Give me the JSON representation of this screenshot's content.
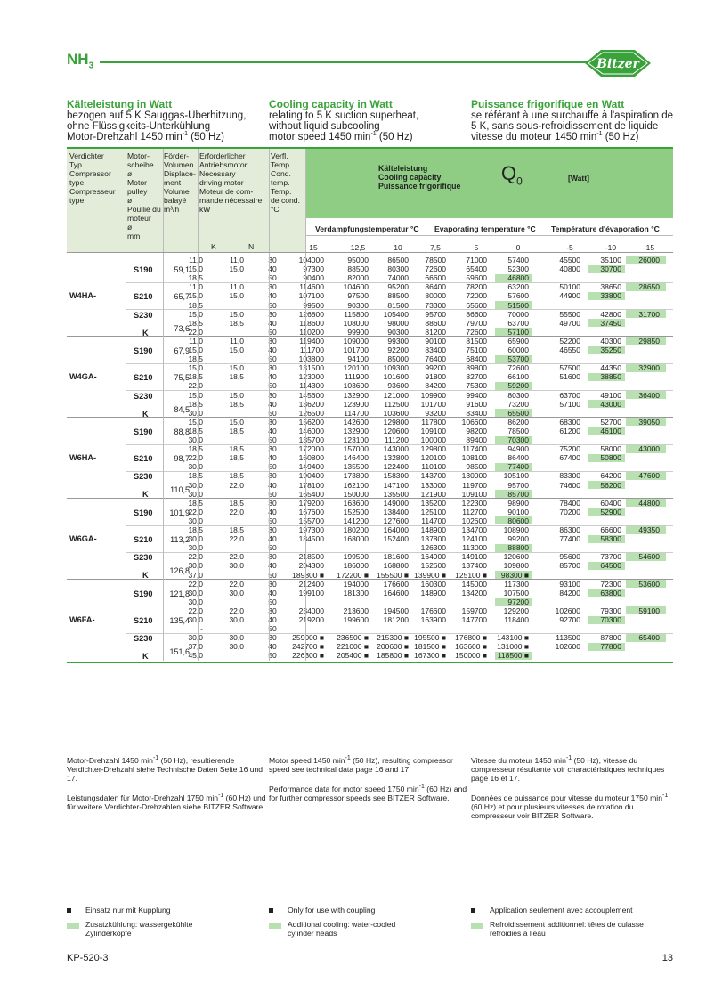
{
  "header": {
    "refrigerant": "NH",
    "refrigerant_sub": "3",
    "brand": "BITZER"
  },
  "columns": [
    {
      "title": "Kälteleistung in Watt",
      "l1": "bezogen auf 5 K Sauggas-Überhitzung,",
      "l2": "ohne Flüssigkeits-Unterkühlung",
      "l3": "Motor-Drehzahl 1450 min",
      "l3_sup": "-1",
      "l3_end": " (50 Hz)"
    },
    {
      "title": "Cooling capacity in Watt",
      "l1": "relating to 5 K suction superheat,",
      "l2": "without liquid subcooling",
      "l3": "motor speed 1450 min",
      "l3_sup": "-1",
      "l3_end": " (50 Hz)"
    },
    {
      "title": "Puissance frigorifique en Watt",
      "l1": "se référant à une surchauffe à l'aspiration de",
      "l2": "5 K, sans sous-refroidissement de liquide",
      "l3": "vitesse du moteur 1450 min",
      "l3_sup": "-1",
      "l3_end": " (50 Hz)"
    }
  ],
  "table_header": {
    "col1": [
      "Verdichter",
      "Typ",
      "",
      "Compressor",
      "type",
      "",
      "Compresseur",
      "type"
    ],
    "col2": [
      "Motor-",
      "scheibe",
      "ø",
      "Motor",
      "pulley",
      "ø",
      "Poullie du",
      "moteur",
      "ø",
      "mm"
    ],
    "col3": [
      "Förder-",
      "Volumen",
      "",
      "Displace-",
      "ment",
      "",
      "Volume",
      "balayé",
      "",
      "m³/h"
    ],
    "col4": [
      "Erforderlicher",
      "Antriebsmotor",
      "",
      "Necessary",
      "driving motor",
      "",
      "Moteur de com-",
      "mande nécessaire",
      "kW"
    ],
    "col4_k": "K",
    "col4_n": "N",
    "col5": [
      "Verfl.",
      "Temp.",
      "",
      "Cond.",
      "temp.",
      "",
      "Temp.",
      "de cond.",
      "",
      "°C"
    ],
    "capacity": [
      "Kälteleistung",
      "Cooling capacity",
      "Puissance frigorifique"
    ],
    "q_symbol": "Q",
    "q_sub": "0",
    "unit": "[Watt]",
    "evap_de": "Verdampfungstemperatur °C",
    "evap_en": "Evaporating temperature °C",
    "evap_fr": "Température d'évaporation °C",
    "evap_temps": [
      "15",
      "12,5",
      "10",
      "7,5",
      "5",
      "0",
      "-5",
      "-10",
      "-15"
    ]
  },
  "groups": [
    {
      "name": "W4HA-",
      "blocks": [
        {
          "model": "S190",
          "kmark": "",
          "disp": "59,1",
          "rows": [
            [
              "11,0",
              "11,0",
              "30",
              "104000",
              "95000",
              "86500",
              "78500",
              "71000",
              "57400",
              "45500",
              "35100",
              "26000"
            ],
            [
              "15,0",
              "15,0",
              "40",
              "97300",
              "88500",
              "80300",
              "72600",
              "65400",
              "52300",
              "40800",
              "30700",
              ""
            ],
            [
              "18,5",
              "",
              "50",
              "90400",
              "82000",
              "74000",
              "66600",
              "59600",
              "46800",
              "",
              "",
              ""
            ]
          ]
        },
        {
          "model": "S210",
          "kmark": "",
          "disp": "65,7",
          "rows": [
            [
              "11,0",
              "11,0",
              "30",
              "114600",
              "104600",
              "95200",
              "86400",
              "78200",
              "63200",
              "50100",
              "38650",
              "28650"
            ],
            [
              "15,0",
              "15,0",
              "40",
              "107100",
              "97500",
              "88500",
              "80000",
              "72000",
              "57600",
              "44900",
              "33800",
              ""
            ],
            [
              "18,5",
              "",
              "50",
              "99500",
              "90300",
              "81500",
              "73300",
              "65600",
              "51500",
              "",
              "",
              ""
            ]
          ]
        },
        {
          "model": "S230",
          "kmark": "K",
          "disp": "73,6",
          "rows": [
            [
              "15,0",
              "15,0",
              "30",
              "126800",
              "115800",
              "105400",
              "95700",
              "86600",
              "70000",
              "55500",
              "42800",
              "31700"
            ],
            [
              "18,5",
              "18,5",
              "40",
              "118600",
              "108000",
              "98000",
              "88600",
              "79700",
              "63700",
              "49700",
              "37450",
              ""
            ],
            [
              "22,0",
              "",
              "50",
              "110200",
              "99900",
              "90300",
              "81200",
              "72600",
              "57100",
              "",
              "",
              ""
            ]
          ]
        }
      ]
    },
    {
      "name": "W4GA-",
      "blocks": [
        {
          "model": "S190",
          "kmark": "",
          "disp": "67,9",
          "rows": [
            [
              "11,0",
              "11,0",
              "30",
              "119400",
              "109000",
              "99300",
              "90100",
              "81500",
              "65900",
              "52200",
              "40300",
              "29850"
            ],
            [
              "15,0",
              "15,0",
              "40",
              "111700",
              "101700",
              "92200",
              "83400",
              "75100",
              "60000",
              "46550",
              "35250",
              ""
            ],
            [
              "18,5",
              "",
              "50",
              "103800",
              "94100",
              "85000",
              "76400",
              "68400",
              "53700",
              "",
              "",
              ""
            ]
          ]
        },
        {
          "model": "S210",
          "kmark": "",
          "disp": "75,5",
          "rows": [
            [
              "15,0",
              "15,0",
              "30",
              "131500",
              "120100",
              "109300",
              "99200",
              "89800",
              "72600",
              "57500",
              "44350",
              "32900"
            ],
            [
              "18,5",
              "18,5",
              "40",
              "123000",
              "111900",
              "101600",
              "91800",
              "82700",
              "66100",
              "51600",
              "38850",
              ""
            ],
            [
              "22,0",
              "",
              "50",
              "114300",
              "103600",
              "93600",
              "84200",
              "75300",
              "59200",
              "",
              "",
              ""
            ]
          ]
        },
        {
          "model": "S230",
          "kmark": "K",
          "disp": "84,5",
          "rows": [
            [
              "15,0",
              "15,0",
              "30",
              "145600",
              "132900",
              "121000",
              "109900",
              "99400",
              "80300",
              "63700",
              "49100",
              "36400"
            ],
            [
              "18,5",
              "18,5",
              "40",
              "136200",
              "123900",
              "112500",
              "101700",
              "91600",
              "73200",
              "57100",
              "43000",
              ""
            ],
            [
              "30,0",
              "",
              "50",
              "126500",
              "114700",
              "103600",
              "93200",
              "83400",
              "65500",
              "",
              "",
              ""
            ]
          ]
        }
      ]
    },
    {
      "name": "W6HA-",
      "blocks": [
        {
          "model": "S190",
          "kmark": "",
          "disp": "88,8",
          "rows": [
            [
              "15,0",
              "15,0",
              "30",
              "156200",
              "142600",
              "129800",
              "117800",
              "106600",
              "86200",
              "68300",
              "52700",
              "39050"
            ],
            [
              "18,5",
              "18,5",
              "40",
              "146000",
              "132900",
              "120600",
              "109100",
              "98200",
              "78500",
              "61200",
              "46100",
              ""
            ],
            [
              "30,0",
              "",
              "50",
              "135700",
              "123100",
              "111200",
              "100000",
              "89400",
              "70300",
              "",
              "",
              ""
            ]
          ]
        },
        {
          "model": "S210",
          "kmark": "",
          "disp": "98,7",
          "rows": [
            [
              "18,5",
              "18,5",
              "30",
              "172000",
              "157000",
              "143000",
              "129800",
              "117400",
              "94900",
              "75200",
              "58000",
              "43000"
            ],
            [
              "22,0",
              "18,5",
              "40",
              "160800",
              "146400",
              "132800",
              "120100",
              "108100",
              "86400",
              "67400",
              "50800",
              ""
            ],
            [
              "30,0",
              "",
              "50",
              "149400",
              "135500",
              "122400",
              "110100",
              "98500",
              "77400",
              "",
              "",
              ""
            ]
          ]
        },
        {
          "model": "S230",
          "kmark": "K",
          "disp": "110,5",
          "rows": [
            [
              "18,5",
              "18,5",
              "30",
              "190400",
              "173800",
              "158300",
              "143700",
              "130000",
              "105100",
              "83300",
              "64200",
              "47600"
            ],
            [
              "30,0",
              "22,0",
              "40",
              "178100",
              "162100",
              "147100",
              "133000",
              "119700",
              "95700",
              "74600",
              "56200",
              ""
            ],
            [
              "30,0",
              "",
              "50",
              "165400",
              "150000",
              "135500",
              "121900",
              "109100",
              "85700",
              "",
              "",
              ""
            ]
          ]
        }
      ]
    },
    {
      "name": "W6GA-",
      "blocks": [
        {
          "model": "S190",
          "kmark": "",
          "disp": "101,9",
          "rows": [
            [
              "18,5",
              "18,5",
              "30",
              "179200",
              "163600",
              "149000",
              "135200",
              "122300",
              "98900",
              "78400",
              "60400",
              "44800"
            ],
            [
              "22,0",
              "22,0",
              "40",
              "167600",
              "152500",
              "138400",
              "125100",
              "112700",
              "90100",
              "70200",
              "52900",
              ""
            ],
            [
              "30,0",
              "",
              "50",
              "155700",
              "141200",
              "127600",
              "114700",
              "102600",
              "80600",
              "",
              "",
              ""
            ]
          ]
        },
        {
          "model": "S210",
          "kmark": "",
          "disp": "113,2",
          "rows": [
            [
              "18,5",
              "18,5",
              "30",
              "197300",
              "180200",
              "164000",
              "148900",
              "134700",
              "108900",
              "86300",
              "66600",
              "49350"
            ],
            [
              "30,0",
              "22,0",
              "40",
              "184500",
              "168000",
              "152400",
              "137800",
              "124100",
              "99200",
              "77400",
              "58300",
              ""
            ],
            [
              "30,0",
              "",
              "50",
              "",
              "",
              "",
              "126300",
              "113000",
              "88800",
              "",
              "",
              ""
            ]
          ]
        },
        {
          "model": "S230",
          "kmark": "K",
          "disp": "126,8",
          "rows": [
            [
              "22,0",
              "22,0",
              "30",
              "218500",
              "199500",
              "181600",
              "164900",
              "149100",
              "120600",
              "95600",
              "73700",
              "54600"
            ],
            [
              "30,0",
              "30,0",
              "40",
              "204300",
              "186000",
              "168800",
              "152600",
              "137400",
              "109800",
              "85700",
              "64500",
              ""
            ],
            [
              "37,0",
              "",
              "50",
              "189800 ■",
              "172200 ■",
              "155500 ■",
              "139900 ■",
              "125100 ■",
              "98300 ■",
              "",
              "",
              ""
            ]
          ]
        }
      ]
    },
    {
      "name": "W6FA-",
      "blocks": [
        {
          "model": "S190",
          "kmark": "",
          "disp": "121,8",
          "rows": [
            [
              "22,0",
              "22,0",
              "30",
              "212400",
              "194000",
              "176600",
              "160300",
              "145000",
              "117300",
              "93100",
              "72300",
              "53600"
            ],
            [
              "30,0",
              "30,0",
              "40",
              "199100",
              "181300",
              "164600",
              "148900",
              "134200",
              "107500",
              "84200",
              "63800",
              ""
            ],
            [
              "30,0",
              "",
              "50",
              "",
              "",
              "",
              "",
              "",
              "97200",
              "",
              "",
              ""
            ]
          ]
        },
        {
          "model": "S210",
          "kmark": "",
          "disp": "135,4",
          "rows": [
            [
              "22,0",
              "22,0",
              "30",
              "234000",
              "213600",
              "194500",
              "176600",
              "159700",
              "129200",
              "102600",
              "79300",
              "59100"
            ],
            [
              "30,0",
              "30,0",
              "40",
              "219200",
              "199600",
              "181200",
              "163900",
              "147700",
              "118400",
              "92700",
              "70300",
              ""
            ],
            [
              "-",
              "",
              "50",
              "",
              "",
              "",
              "",
              "",
              "",
              "",
              "",
              ""
            ]
          ]
        },
        {
          "model": "S230",
          "kmark": "K",
          "disp": "151,6",
          "rows": [
            [
              "30,0",
              "30,0",
              "30",
              "259000 ■",
              "236500 ■",
              "215300 ■",
              "195500 ■",
              "176800 ■",
              "143100 ■",
              "113500",
              "87800",
              "65400"
            ],
            [
              "37,0",
              "30,0",
              "40",
              "242700 ■",
              "221000 ■",
              "200600 ■",
              "181500 ■",
              "163600 ■",
              "131000 ■",
              "102600",
              "77800",
              ""
            ],
            [
              "45,0",
              "",
              "50",
              "226300 ■",
              "205400 ■",
              "185800 ■",
              "167300 ■",
              "150000 ■",
              "118500 ■",
              "",
              "",
              ""
            ]
          ]
        }
      ]
    }
  ],
  "footnotes": [
    {
      "p1a": "Motor-Drehzahl 1450 min",
      "p1sup": "-1",
      "p1b": " (50 Hz), resultierende Verdichter-Drehzahl siehe Technische Daten Seite 16 und 17.",
      "p2a": "Leistungsdaten für Motor-Drehzahl 1750 min",
      "p2sup": "-1",
      "p2b": " (60 Hz) und für weitere Verdichter-Drehzahlen siehe BITZER Software."
    },
    {
      "p1a": "Motor speed 1450 min",
      "p1sup": "-1",
      "p1b": " (50 Hz), resulting compressor speed see technical data page 16 and 17.",
      "p2a": "Performance data for motor speed 1750 min",
      "p2sup": "-1",
      "p2b": " (60 Hz) and for further compressor speeds see BITZER Software."
    },
    {
      "p1a": "Vitesse du moteur 1450 min",
      "p1sup": "-1",
      "p1b": " (50 Hz), vitesse du compresseur résultante voir charactéristiques techniques page 16 et 17.",
      "p2a": "Données de puissance pour vitesse du moteur 1750 min",
      "p2sup": "-1",
      "p2b": " (60 Hz) et pour plusieurs vitesses de rotation du compresseur voir BITZER Software."
    }
  ],
  "legend": [
    {
      "coupling": "Einsatz nur mit Kupplung",
      "cooling1": "Zusatzkühlung: wassergekühlte",
      "cooling2": "Zylinderköpfe"
    },
    {
      "coupling": "Only for use with coupling",
      "cooling1": "Additional cooling: water-cooled",
      "cooling2": "cylinder heads"
    },
    {
      "coupling": "Application seulement avec accouplement",
      "cooling1": "Refroidissement additionnel: têtes de culasse",
      "cooling2": "refroidies à l'eau"
    }
  ],
  "footer": {
    "doc_code": "KP-520-3",
    "page": "13"
  },
  "colors": {
    "accent": "#3aa23a",
    "header_green": "#8fcc84",
    "highlight": "#b8e0b0",
    "header_grey": "#e3ecd9"
  }
}
